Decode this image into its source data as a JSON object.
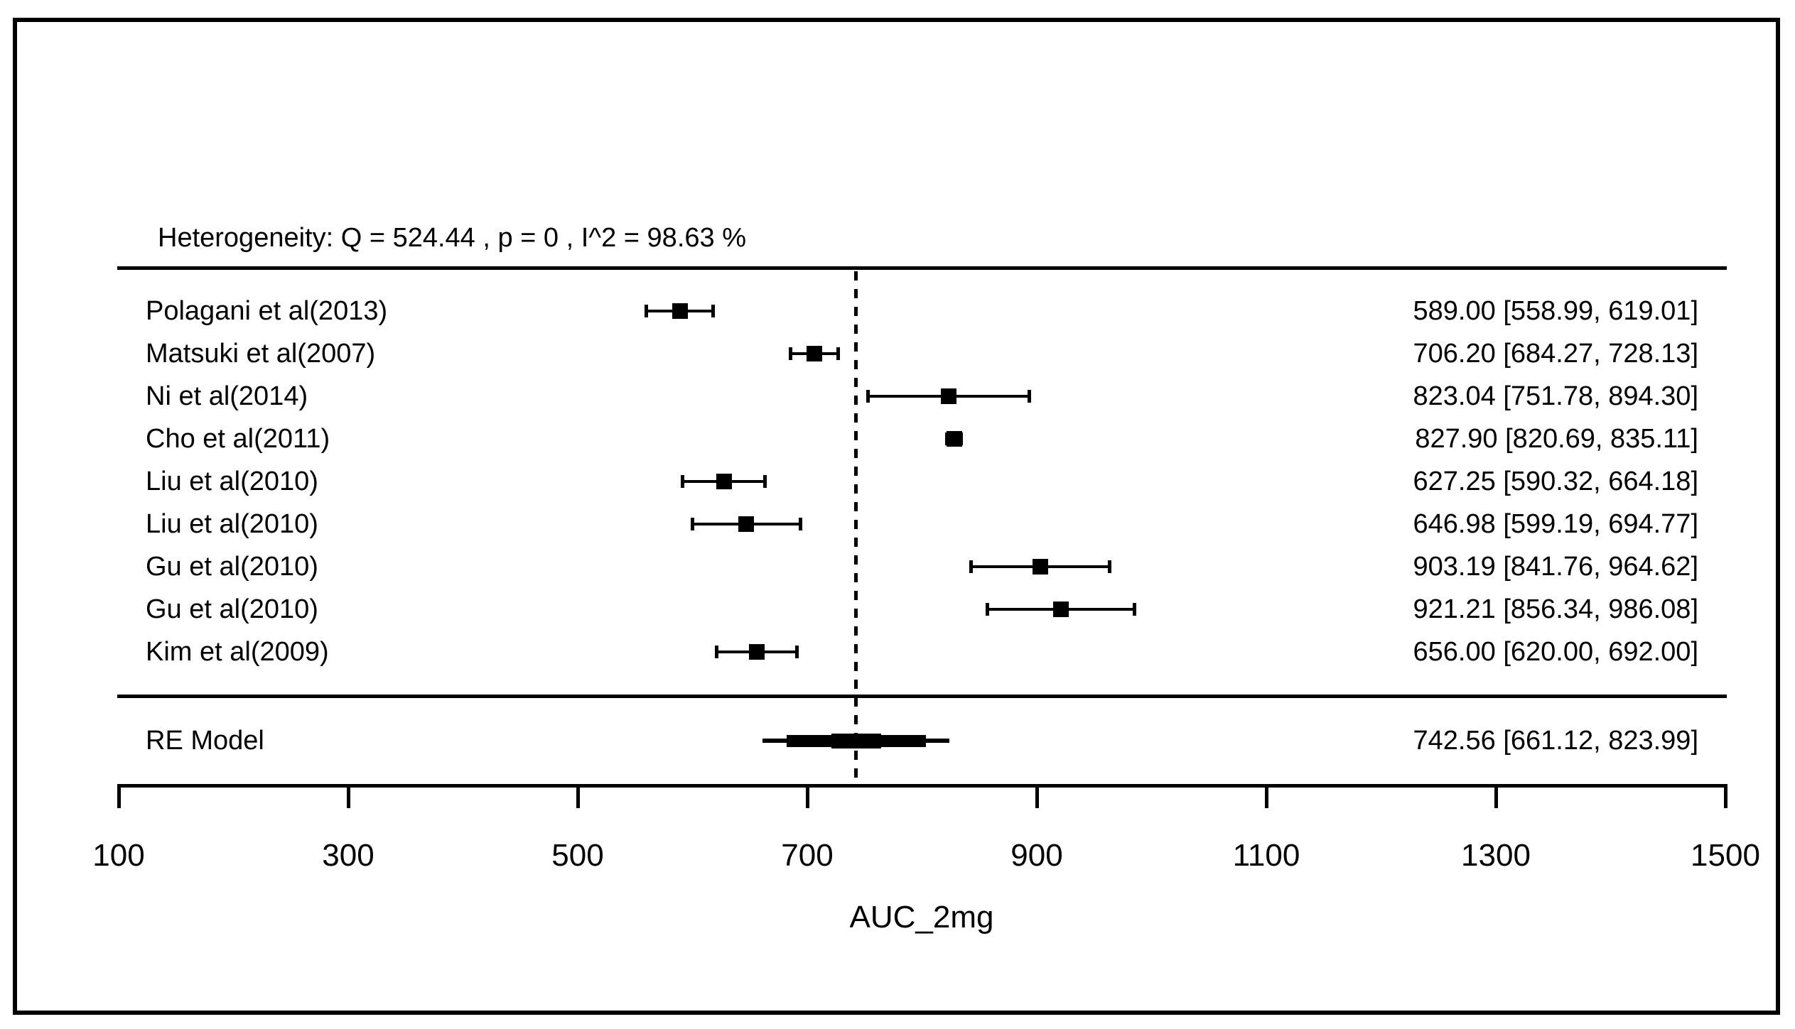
{
  "chart_data": {
    "type": "forest",
    "heterogeneity": "Heterogeneity: Q = 524.44 , p = 0 , I^2 = 98.63 %",
    "xlabel": "AUC_2mg",
    "xlim": [
      100,
      1500
    ],
    "x_ticks": [
      100,
      300,
      500,
      700,
      900,
      1100,
      1300,
      1500
    ],
    "grid": false,
    "legend": "none",
    "studies": [
      {
        "label": "Polagani et al(2013)",
        "estimate": 589.0,
        "ci_lo": 558.99,
        "ci_hi": 619.01,
        "annotation": "589.00 [558.99, 619.01]"
      },
      {
        "label": "Matsuki et al(2007)",
        "estimate": 706.2,
        "ci_lo": 684.27,
        "ci_hi": 728.13,
        "annotation": "706.20 [684.27, 728.13]"
      },
      {
        "label": "Ni et al(2014)",
        "estimate": 823.04,
        "ci_lo": 751.78,
        "ci_hi": 894.3,
        "annotation": "823.04 [751.78, 894.30]"
      },
      {
        "label": "Cho et al(2011)",
        "estimate": 827.9,
        "ci_lo": 820.69,
        "ci_hi": 835.11,
        "annotation": "827.90 [820.69, 835.11]"
      },
      {
        "label": "Liu et al(2010)",
        "estimate": 627.25,
        "ci_lo": 590.32,
        "ci_hi": 664.18,
        "annotation": "627.25 [590.32, 664.18]"
      },
      {
        "label": "Liu et al(2010)",
        "estimate": 646.98,
        "ci_lo": 599.19,
        "ci_hi": 694.77,
        "annotation": "646.98 [599.19, 694.77]"
      },
      {
        "label": "Gu et al(2010)",
        "estimate": 903.19,
        "ci_lo": 841.76,
        "ci_hi": 964.62,
        "annotation": "903.19 [841.76, 964.62]"
      },
      {
        "label": "Gu et al(2010)",
        "estimate": 921.21,
        "ci_lo": 856.34,
        "ci_hi": 986.08,
        "annotation": "921.21 [856.34, 986.08]"
      },
      {
        "label": "Kim et al(2009)",
        "estimate": 656.0,
        "ci_lo": 620.0,
        "ci_hi": 692.0,
        "annotation": "656.00 [620.00, 692.00]"
      }
    ],
    "summary": {
      "label": "RE Model",
      "estimate": 742.56,
      "ci_lo": 661.12,
      "ci_hi": 823.99,
      "annotation": "742.56 [661.12, 823.99]"
    },
    "colors": {
      "foreground": "#000000",
      "background": "#ffffff"
    }
  }
}
